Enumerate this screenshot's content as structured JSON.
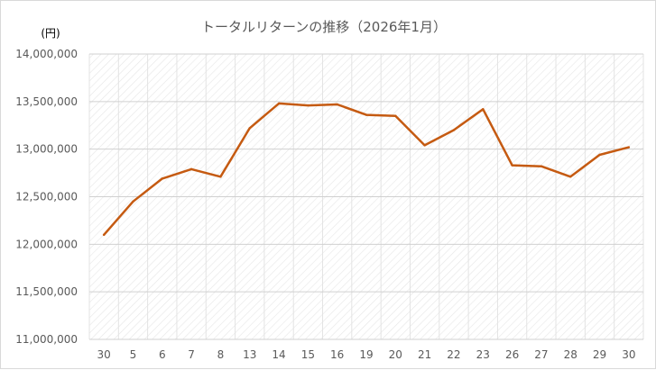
{
  "chart_data": {
    "type": "line",
    "title": "トータルリターンの推移（2026年1月）",
    "unit_label": "(円)",
    "xlabel": "",
    "ylabel": "",
    "ylim": [
      11000000,
      14000000
    ],
    "y_ticks": [
      "14,000,000",
      "13,500,000",
      "13,000,000",
      "12,500,000",
      "12,000,000",
      "11,500,000",
      "11,000,000"
    ],
    "y_tick_values": [
      14000000,
      13500000,
      13000000,
      12500000,
      12000000,
      11500000,
      11000000
    ],
    "categories": [
      "30",
      "5",
      "6",
      "7",
      "8",
      "13",
      "14",
      "15",
      "16",
      "19",
      "20",
      "21",
      "22",
      "23",
      "26",
      "27",
      "28",
      "29",
      "30"
    ],
    "series": [
      {
        "values": [
          12100000,
          12450000,
          12690000,
          12790000,
          12710000,
          13220000,
          13480000,
          13460000,
          13470000,
          13360000,
          13350000,
          13040000,
          13200000,
          13420000,
          12830000,
          12820000,
          12710000,
          12940000,
          13020000
        ],
        "color": "#c55a11"
      }
    ],
    "grid": true,
    "legend": "none"
  }
}
